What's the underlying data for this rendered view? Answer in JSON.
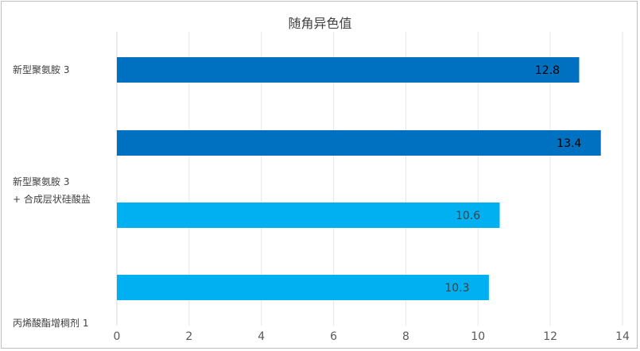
{
  "chart_data": {
    "type": "bar",
    "orientation": "horizontal",
    "title": "随角异色值",
    "xlabel": "",
    "ylabel": "",
    "xlim": [
      0,
      14
    ],
    "x_ticks": [
      "0",
      "2",
      "4",
      "6",
      "8",
      "10",
      "12",
      "14"
    ],
    "grid": "vertical",
    "category_labels": {
      "top": "新型聚氨胺 3",
      "middle_line1": "新型聚氨胺 3",
      "middle_line2": "+ 合成层状硅酸盐",
      "bottom": "丙烯酸酯增稠剂 1"
    },
    "bars": [
      {
        "value": 12.8,
        "label": "12.8",
        "color": "#0070c0",
        "label_color": "#000000"
      },
      {
        "value": 13.4,
        "label": "13.4",
        "color": "#0070c0",
        "label_color": "#000000"
      },
      {
        "value": 10.6,
        "label": "10.6",
        "color": "#00b0f0",
        "label_color": "#404040"
      },
      {
        "value": 10.3,
        "label": "10.3",
        "color": "#00b0f0",
        "label_color": "#404040"
      }
    ]
  }
}
